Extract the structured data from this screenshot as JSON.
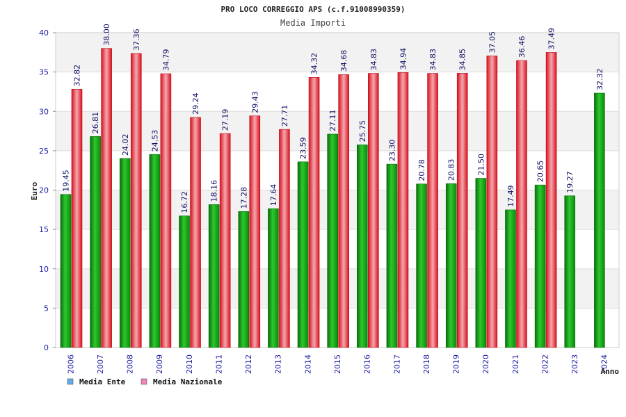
{
  "chart_data": {
    "type": "bar",
    "title": "PRO LOCO CORREGGIO APS (c.f.91008990359)",
    "subtitle": "Media Importi",
    "xlabel": "Anno",
    "ylabel": "Euro",
    "ylim": [
      0,
      40
    ],
    "yticks": [
      "0",
      "5",
      "10",
      "15",
      "20",
      "25",
      "30",
      "35",
      "40"
    ],
    "grid": true,
    "legend_position": "bottom-left",
    "categories": [
      "2006",
      "2007",
      "2008",
      "2009",
      "2010",
      "2011",
      "2012",
      "2013",
      "2014",
      "2015",
      "2016",
      "2017",
      "2018",
      "2019",
      "2020",
      "2021",
      "2022",
      "2023",
      "2024"
    ],
    "series": [
      {
        "name": "Media Ente",
        "color": "#22a022",
        "legend_color": "#66aaee",
        "values": [
          19.45,
          26.81,
          24.02,
          24.53,
          16.72,
          18.16,
          17.28,
          17.64,
          23.59,
          27.11,
          25.75,
          23.3,
          20.78,
          20.83,
          21.5,
          17.49,
          20.65,
          19.27,
          32.32
        ],
        "labels": [
          "19.45",
          "26.81",
          "24.02",
          "24.53",
          "16.72",
          "18.16",
          "17.28",
          "17.64",
          "23.59",
          "27.11",
          "25.75",
          "23.30",
          "20.78",
          "20.83",
          "21.50",
          "17.49",
          "20.65",
          "19.27",
          "32.32"
        ]
      },
      {
        "name": "Media Nazionale",
        "color": "#ee2233",
        "legend_color": "#ee88bb",
        "values": [
          32.82,
          38.0,
          37.36,
          34.79,
          29.24,
          27.19,
          29.43,
          27.71,
          34.32,
          34.68,
          34.83,
          34.94,
          34.83,
          34.85,
          37.05,
          36.46,
          37.49,
          null,
          null
        ],
        "labels": [
          "32.82",
          "38.00",
          "37.36",
          "34.79",
          "29.24",
          "27.19",
          "29.43",
          "27.71",
          "34.32",
          "34.68",
          "34.83",
          "34.94",
          "34.83",
          "34.85",
          "37.05",
          "36.46",
          "37.49",
          null,
          null
        ]
      }
    ]
  }
}
